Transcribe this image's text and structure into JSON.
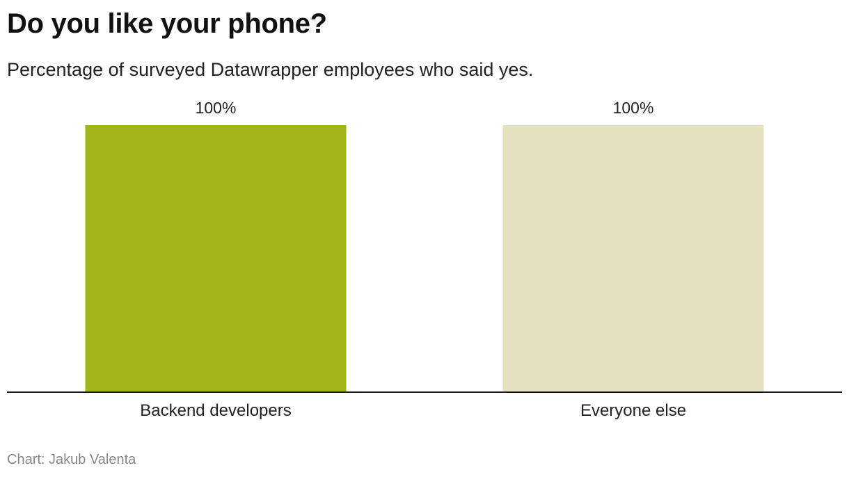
{
  "chart_data": {
    "type": "bar",
    "title": "Do you like your phone?",
    "subtitle": "Percentage of surveyed Datawrapper employees who said yes.",
    "categories": [
      "Backend developers",
      "Everyone else"
    ],
    "values": [
      100,
      100
    ],
    "value_labels": [
      "100%",
      "100%"
    ],
    "colors": [
      "#a0b616",
      "#e5e2bf"
    ],
    "ylim": [
      0,
      100
    ],
    "grid": false,
    "legend": "none",
    "xlabel": "",
    "ylabel": ""
  },
  "credit": "Chart: Jakub Valenta"
}
